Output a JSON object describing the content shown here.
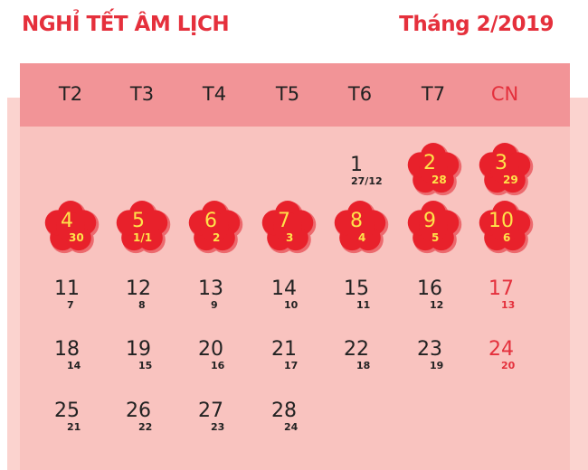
{
  "title": "NGHỈ TẾT ÂM LỊCH",
  "month": "Tháng 2/2019",
  "colors": {
    "accent": "#e5303c",
    "header": "#f29497",
    "background": "#f9c3bf",
    "flower": "#e8212b",
    "holiday_text": "#ffe24a"
  },
  "weekdays": [
    "T2",
    "T3",
    "T4",
    "T5",
    "T6",
    "T7",
    "CN"
  ],
  "weeks": [
    [
      null,
      null,
      null,
      null,
      {
        "day": "1",
        "lunar": "27/12"
      },
      {
        "day": "2",
        "lunar": "28",
        "holiday": true
      },
      {
        "day": "3",
        "lunar": "29",
        "holiday": true
      }
    ],
    [
      {
        "day": "4",
        "lunar": "30",
        "holiday": true
      },
      {
        "day": "5",
        "lunar": "1/1",
        "holiday": true
      },
      {
        "day": "6",
        "lunar": "2",
        "holiday": true
      },
      {
        "day": "7",
        "lunar": "3",
        "holiday": true
      },
      {
        "day": "8",
        "lunar": "4",
        "holiday": true
      },
      {
        "day": "9",
        "lunar": "5",
        "holiday": true
      },
      {
        "day": "10",
        "lunar": "6",
        "holiday": true
      }
    ],
    [
      {
        "day": "11",
        "lunar": "7"
      },
      {
        "day": "12",
        "lunar": "8"
      },
      {
        "day": "13",
        "lunar": "9"
      },
      {
        "day": "14",
        "lunar": "10"
      },
      {
        "day": "15",
        "lunar": "11"
      },
      {
        "day": "16",
        "lunar": "12"
      },
      {
        "day": "17",
        "lunar": "13"
      }
    ],
    [
      {
        "day": "18",
        "lunar": "14"
      },
      {
        "day": "19",
        "lunar": "15"
      },
      {
        "day": "20",
        "lunar": "16"
      },
      {
        "day": "21",
        "lunar": "17"
      },
      {
        "day": "22",
        "lunar": "18"
      },
      {
        "day": "23",
        "lunar": "19"
      },
      {
        "day": "24",
        "lunar": "20"
      }
    ],
    [
      {
        "day": "25",
        "lunar": "21"
      },
      {
        "day": "26",
        "lunar": "22"
      },
      {
        "day": "27",
        "lunar": "23"
      },
      {
        "day": "28",
        "lunar": "24"
      },
      null,
      null,
      null
    ]
  ]
}
